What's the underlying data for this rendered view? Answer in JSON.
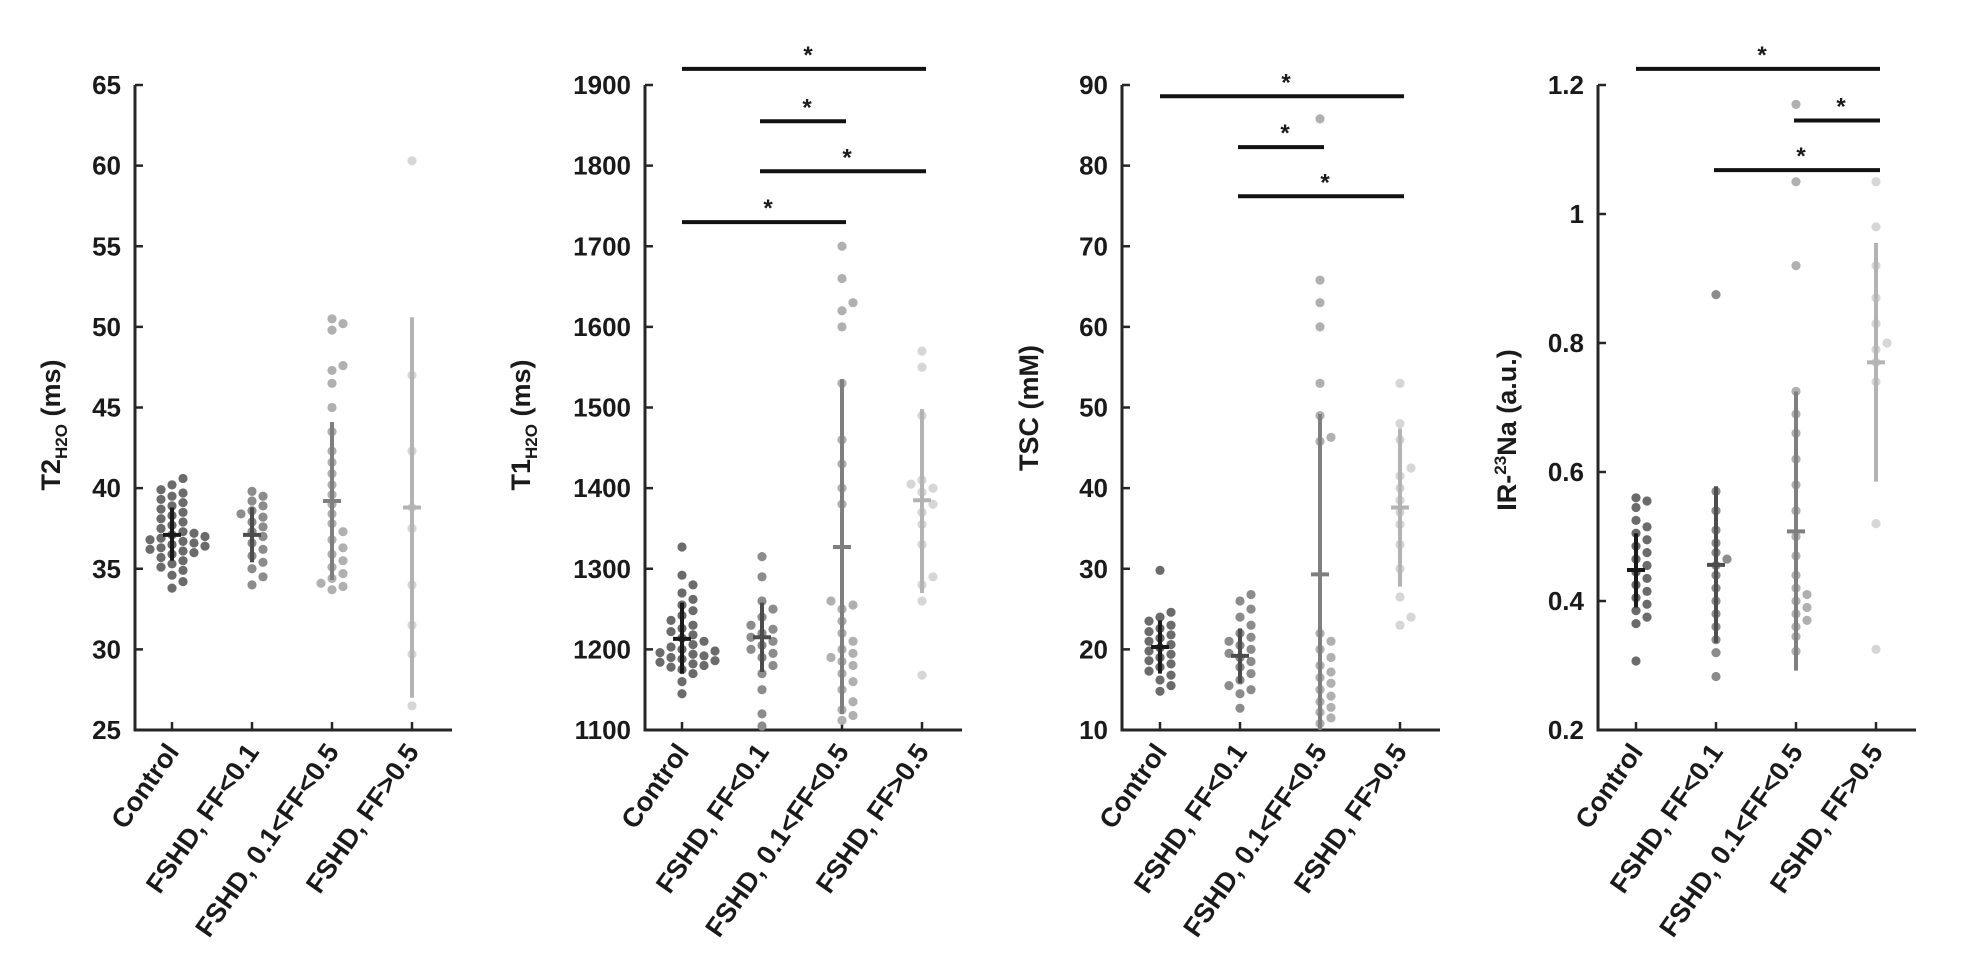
{
  "figure": {
    "groups": [
      "Control",
      "FSHD, FF<0.1",
      "FSHD, 0.1<FF<0.5",
      "FSHD, FF>0.5"
    ],
    "group_colors": [
      "#1a1a1a",
      "#4d4d4d",
      "#7f7f7f",
      "#b3b3b3"
    ],
    "point_colors": [
      "#6b6b6b",
      "#8c8c8c",
      "#b0b0b0",
      "#d6d6d6"
    ]
  },
  "chart_data": [
    {
      "type": "scatter",
      "ylabel_main": "T2",
      "ylabel_sub": "H2O",
      "ylabel_sup": "",
      "ylabel_prefix": "",
      "ylabel_unit": " (ms)",
      "ylim": [
        25,
        65
      ],
      "yticks": [
        25,
        30,
        35,
        40,
        45,
        50,
        55,
        60,
        65
      ],
      "ytick_labels": [
        "25",
        "30",
        "35",
        "40",
        "45",
        "50",
        "55",
        "60",
        "65"
      ],
      "categories": [
        "Control",
        "FSHD, FF<0.1",
        "FSHD, 0.1<FF<0.5",
        "FSHD, FF>0.5"
      ],
      "series": [
        {
          "mean": 37.1,
          "err_low": 35.5,
          "err_high": 38.8,
          "points": [
            33.8,
            34.2,
            34.6,
            34.9,
            35.1,
            35.3,
            35.5,
            35.7,
            35.9,
            36.0,
            36.1,
            36.2,
            36.3,
            36.4,
            36.5,
            36.6,
            36.7,
            36.8,
            36.9,
            37.0,
            37.1,
            37.2,
            37.3,
            37.5,
            37.7,
            37.9,
            38.1,
            38.3,
            38.5,
            38.7,
            38.9,
            39.1,
            39.3,
            39.5,
            39.7,
            39.9,
            40.2,
            40.6
          ]
        },
        {
          "mean": 37.1,
          "err_low": 35.4,
          "err_high": 38.8,
          "points": [
            34.0,
            34.5,
            35.0,
            35.4,
            35.8,
            36.2,
            36.6,
            37.0,
            37.3,
            37.6,
            37.9,
            38.2,
            38.4,
            38.6,
            38.9,
            39.2,
            39.5,
            39.8
          ]
        },
        {
          "mean": 39.2,
          "err_low": 34.3,
          "err_high": 44.1,
          "points": [
            33.7,
            33.9,
            34.1,
            34.4,
            34.7,
            35.1,
            35.5,
            35.9,
            36.3,
            36.8,
            37.3,
            37.8,
            38.4,
            39.0,
            39.6,
            40.2,
            40.9,
            41.6,
            42.3,
            43.5,
            45.0,
            46.5,
            47.3,
            47.6,
            49.8,
            50.2,
            50.5
          ]
        },
        {
          "mean": 38.8,
          "err_low": 27.0,
          "err_high": 50.6,
          "points": [
            26.5,
            29.7,
            31.5,
            34.0,
            37.5,
            38.8,
            42.3,
            47.0,
            60.3
          ]
        }
      ],
      "significance": []
    },
    {
      "type": "scatter",
      "ylabel_main": "T1",
      "ylabel_sub": "H2O",
      "ylabel_sup": "",
      "ylabel_prefix": "",
      "ylabel_unit": " (ms)",
      "ylim": [
        1100,
        1900
      ],
      "yticks": [
        1100,
        1200,
        1300,
        1400,
        1500,
        1600,
        1700,
        1800,
        1900
      ],
      "ytick_labels": [
        "1100",
        "1200",
        "1300",
        "1400",
        "1500",
        "1600",
        "1700",
        "1800",
        "1900"
      ],
      "categories": [
        "Control",
        "FSHD, FF<0.1",
        "FSHD, 0.1<FF<0.5",
        "FSHD, FF>0.5"
      ],
      "series": [
        {
          "mean": 1213,
          "err_low": 1170,
          "err_high": 1258,
          "points": [
            1145,
            1160,
            1170,
            1175,
            1178,
            1180,
            1182,
            1184,
            1186,
            1188,
            1190,
            1192,
            1194,
            1196,
            1198,
            1200,
            1203,
            1206,
            1210,
            1214,
            1218,
            1222,
            1226,
            1230,
            1236,
            1242,
            1248,
            1255,
            1262,
            1270,
            1280,
            1292,
            1327
          ]
        },
        {
          "mean": 1215,
          "err_low": 1172,
          "err_high": 1258,
          "points": [
            1105,
            1120,
            1150,
            1170,
            1180,
            1190,
            1195,
            1200,
            1205,
            1210,
            1215,
            1220,
            1225,
            1230,
            1240,
            1250,
            1260,
            1290,
            1315
          ]
        },
        {
          "mean": 1327,
          "err_low": 1120,
          "err_high": 1535,
          "points": [
            1112,
            1118,
            1125,
            1135,
            1150,
            1160,
            1170,
            1180,
            1185,
            1190,
            1195,
            1200,
            1210,
            1220,
            1235,
            1250,
            1255,
            1260,
            1380,
            1400,
            1430,
            1460,
            1530,
            1600,
            1620,
            1630,
            1660,
            1700
          ]
        },
        {
          "mean": 1385,
          "err_low": 1270,
          "err_high": 1498,
          "points": [
            1168,
            1260,
            1280,
            1290,
            1330,
            1355,
            1370,
            1380,
            1395,
            1400,
            1405,
            1410,
            1490,
            1550,
            1570
          ]
        }
      ],
      "significance": [
        {
          "from": 0,
          "to": 3,
          "y": 1920,
          "label": "*"
        },
        {
          "from": 1,
          "to": 2,
          "y": 1855,
          "label": "*"
        },
        {
          "from": 1,
          "to": 3,
          "y": 1793,
          "label": "*"
        },
        {
          "from": 0,
          "to": 2,
          "y": 1730,
          "label": "*"
        }
      ]
    },
    {
      "type": "scatter",
      "ylabel_main": "TSC",
      "ylabel_sub": "",
      "ylabel_sup": "",
      "ylabel_prefix": "",
      "ylabel_unit": " (mM)",
      "ylim": [
        10,
        90
      ],
      "yticks": [
        10,
        20,
        30,
        40,
        50,
        60,
        70,
        80,
        90
      ],
      "ytick_labels": [
        "10",
        "20",
        "30",
        "40",
        "50",
        "60",
        "70",
        "80",
        "90"
      ],
      "categories": [
        "Control",
        "FSHD, FF<0.1",
        "FSHD, 0.1<FF<0.5",
        "FSHD, FF>0.5"
      ],
      "series": [
        {
          "mean": 20.3,
          "err_low": 17.0,
          "err_high": 23.6,
          "points": [
            14.8,
            15.5,
            16.2,
            16.8,
            17.3,
            17.8,
            18.2,
            18.6,
            19.0,
            19.4,
            19.8,
            20.2,
            20.6,
            21.0,
            21.4,
            21.8,
            22.2,
            22.6,
            23.0,
            23.5,
            24.0,
            24.6,
            29.8
          ]
        },
        {
          "mean": 19.2,
          "err_low": 15.8,
          "err_high": 22.6,
          "points": [
            12.7,
            14.5,
            15.0,
            15.5,
            16.2,
            17.0,
            17.8,
            18.5,
            19.0,
            19.5,
            20.0,
            20.5,
            21.0,
            21.5,
            22.0,
            23.0,
            24.0,
            25.0,
            26.0,
            26.8
          ]
        },
        {
          "mean": 29.3,
          "err_low": 10.0,
          "err_high": 49.2,
          "points": [
            10.8,
            11.5,
            12.2,
            12.8,
            13.5,
            14.2,
            15.0,
            15.8,
            16.5,
            17.2,
            18.0,
            19.0,
            20.0,
            21.0,
            22.0,
            45.8,
            46.3,
            49.0,
            53.0,
            60.0,
            63.0,
            65.8,
            85.8
          ]
        },
        {
          "mean": 37.6,
          "err_low": 27.8,
          "err_high": 47.4,
          "points": [
            23.0,
            24.0,
            26.5,
            30.0,
            33.0,
            35.5,
            37.0,
            38.5,
            40.0,
            41.5,
            42.5,
            46.0,
            48.0,
            53.0
          ]
        }
      ],
      "significance": [
        {
          "from": 0,
          "to": 3,
          "y": 88.6,
          "label": "*"
        },
        {
          "from": 1,
          "to": 2,
          "y": 82.3,
          "label": "*"
        },
        {
          "from": 1,
          "to": 3,
          "y": 76.2,
          "label": "*"
        }
      ]
    },
    {
      "type": "scatter",
      "ylabel_main": "",
      "ylabel_sub": "",
      "ylabel_sup": "23",
      "ylabel_prefix": "IR-",
      "ylabel_unit": "Na (a.u.)",
      "ylim": [
        0.2,
        1.2
      ],
      "yticks": [
        0.2,
        0.4,
        0.6,
        0.8,
        1.0,
        1.2
      ],
      "ytick_labels": [
        "0.2",
        "0.4",
        "0.6",
        "0.8",
        "1",
        "1.2"
      ],
      "categories": [
        "Control",
        "FSHD, FF<0.1",
        "FSHD, 0.1<FF<0.5",
        "FSHD, FF>0.5"
      ],
      "series": [
        {
          "mean": 0.448,
          "err_low": 0.39,
          "err_high": 0.505,
          "points": [
            0.307,
            0.365,
            0.375,
            0.385,
            0.395,
            0.405,
            0.415,
            0.425,
            0.435,
            0.445,
            0.455,
            0.465,
            0.475,
            0.485,
            0.495,
            0.505,
            0.515,
            0.525,
            0.545,
            0.555,
            0.56
          ]
        },
        {
          "mean": 0.456,
          "err_low": 0.335,
          "err_high": 0.578,
          "points": [
            0.283,
            0.32,
            0.34,
            0.36,
            0.38,
            0.4,
            0.42,
            0.44,
            0.455,
            0.465,
            0.475,
            0.49,
            0.51,
            0.54,
            0.57,
            0.875
          ]
        },
        {
          "mean": 0.508,
          "err_low": 0.292,
          "err_high": 0.725,
          "points": [
            0.322,
            0.345,
            0.36,
            0.37,
            0.38,
            0.39,
            0.4,
            0.41,
            0.42,
            0.44,
            0.47,
            0.5,
            0.54,
            0.58,
            0.62,
            0.66,
            0.69,
            0.725,
            0.92,
            1.05,
            1.17
          ]
        },
        {
          "mean": 0.77,
          "err_low": 0.585,
          "err_high": 0.955,
          "points": [
            0.325,
            0.52,
            0.74,
            0.77,
            0.79,
            0.8,
            0.83,
            0.87,
            0.92,
            0.98,
            1.05
          ]
        }
      ],
      "significance": [
        {
          "from": 0,
          "to": 3,
          "y": 1.225,
          "label": "*"
        },
        {
          "from": 2,
          "to": 3,
          "y": 1.145,
          "label": "*"
        },
        {
          "from": 1,
          "to": 3,
          "y": 1.068,
          "label": "*"
        }
      ]
    }
  ]
}
